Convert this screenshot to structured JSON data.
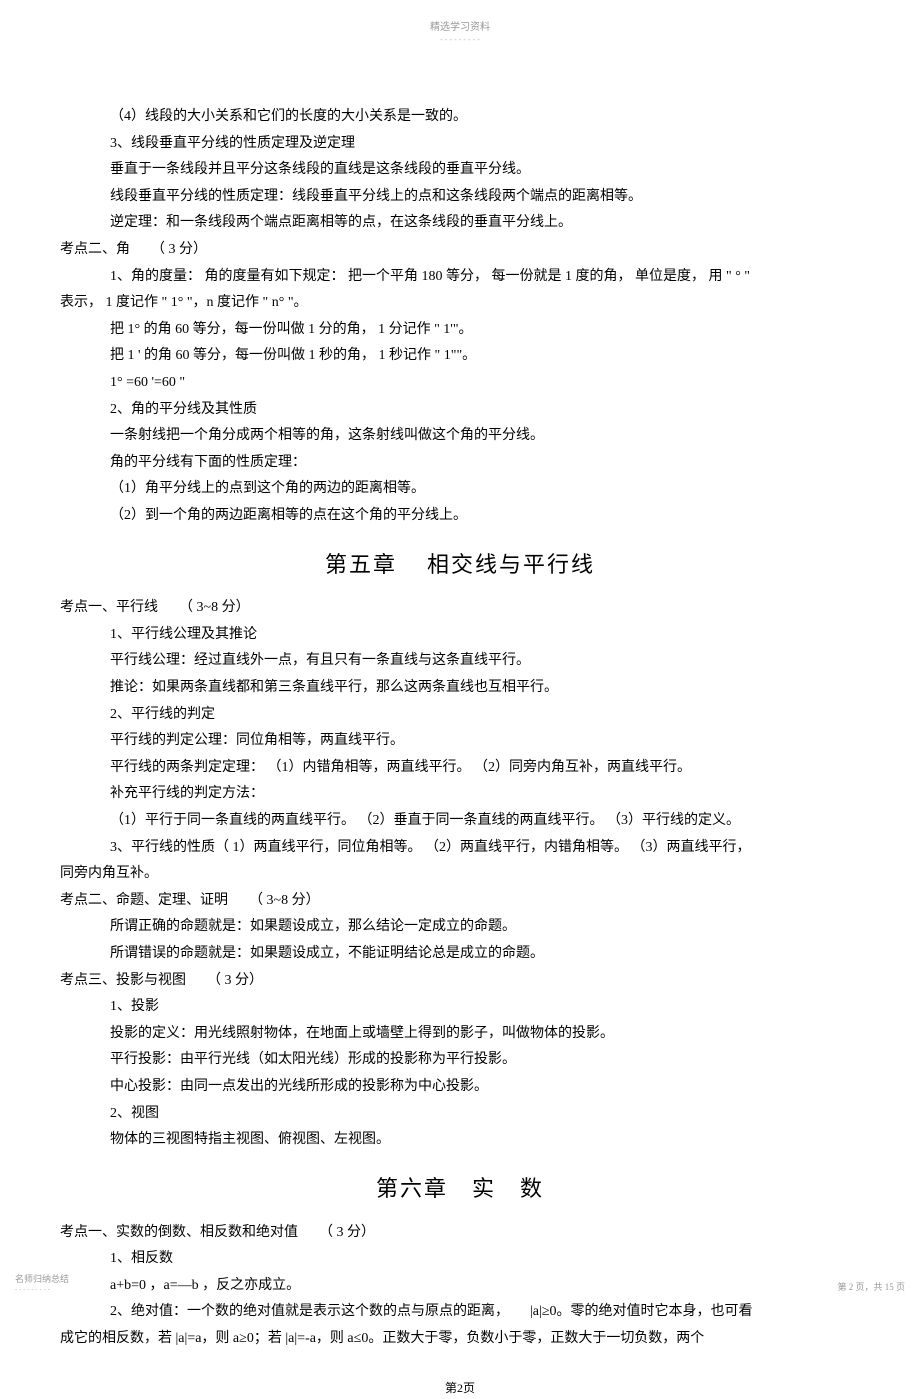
{
  "header": {
    "title": "精选学习资料",
    "dashes": "- - - - - - - - -"
  },
  "content": {
    "p1": "（4）线段的大小关系和它们的长度的大小关系是一致的。",
    "p2": "3、线段垂直平分线的性质定理及逆定理",
    "p3": "垂直于一条线段并且平分这条线段的直线是这条线段的垂直平分线。",
    "p4": "线段垂直平分线的性质定理：线段垂直平分线上的点和这条线段两个端点的距离相等。",
    "p5": "逆定理：和一条线段两个端点距离相等的点，在这条线段的垂直平分线上。",
    "p6": "考点二、角　　（ 3 分）",
    "p7": "1、角的度量：  角的度量有如下规定：   把一个平角   180 等分，  每一份就是   1 度的角，  单位是度，  用 \" ° \"",
    "p7b": "表示，  1 度记作 \" 1° \"，n 度记作 \" n° \"。",
    "p8": "把 1° 的角  60 等分，每一份叫做    1 分的角，  1 分记作 \" 1'\"。",
    "p9": "把 1 ' 的角 60 等分，每一份叫做    1 秒的角，  1 秒记作 \" 1\"\"。",
    "p10": "1°  =60 '=60 \"",
    "p11": "2、角的平分线及其性质",
    "p12": "一条射线把一个角分成两个相等的角，这条射线叫做这个角的平分线。",
    "p13": "角的平分线有下面的性质定理：",
    "p14": "（1）角平分线上的点到这个角的两边的距离相等。",
    "p15": "（2）到一个角的两边距离相等的点在这个角的平分线上。",
    "chapter5_title_a": "第五章",
    "chapter5_title_b": "相交线与平行线",
    "p16": "考点一、平行线　　（ 3~8 分）",
    "p17": "1、平行线公理及其推论",
    "p18": "平行线公理：经过直线外一点，有且只有一条直线与这条直线平行。",
    "p19": "推论：如果两条直线都和第三条直线平行，那么这两条直线也互相平行。",
    "p20": "2、平行线的判定",
    "p21": "平行线的判定公理：同位角相等，两直线平行。",
    "p22": "平行线的两条判定定理：  （1）内错角相等，两直线平行。   （2）同旁内角互补，两直线平行。",
    "p23": "补充平行线的判定方法：",
    "p24": "（1）平行于同一条直线的两直线平行。   （2）垂直于同一条直线的两直线平行。   （3）平行线的定义。",
    "p25": "3、平行线的性质（   1）两直线平行，同位角相等。   （2）两直线平行，内错角相等。   （3）两直线平行，",
    "p25b": "同旁内角互补。",
    "p26": "考点二、命题、定理、证明　　（ 3~8 分）",
    "p27": "所谓正确的命题就是：如果题设成立，那么结论一定成立的命题。",
    "p28": "所谓错误的命题就是：如果题设成立，不能证明结论总是成立的命题。",
    "p29": "考点三、投影与视图　　（ 3 分）",
    "p30": "1、投影",
    "p31": "投影的定义：用光线照射物体，在地面上或墙壁上得到的影子，叫做物体的投影。",
    "p32": "平行投影：由平行光线（如太阳光线）形成的投影称为平行投影。",
    "p33": "中心投影：由同一点发出的光线所形成的投影称为中心投影。",
    "p34": "2、视图",
    "p35": "物体的三视图特指主视图、俯视图、左视图。",
    "chapter6_title_a": "第六章",
    "chapter6_title_b": "实",
    "chapter6_title_c": "数",
    "p36": "考点一、实数的倒数、相反数和绝对值　　（ 3 分）",
    "p37": "1、相反数",
    "p38": "a+b=0 ，a=—b ，反之亦成立。",
    "p39": "2、绝对值：一个数的绝对值就是表示这个数的点与原点的距离，　　|a|≥0。零的绝对值时它本身，也可看",
    "p39b": "成它的相反数，若   |a|=a，则  a≥0；若 |a|=-a，则   a≤0。正数大于零，负数小于零，正数大于一切负数，两个"
  },
  "pageNum": "第2页",
  "footer": {
    "left": "名师归纳总结",
    "leftDashes": "- - - - - - - - -",
    "right": "第  2 页，共  15 页"
  }
}
